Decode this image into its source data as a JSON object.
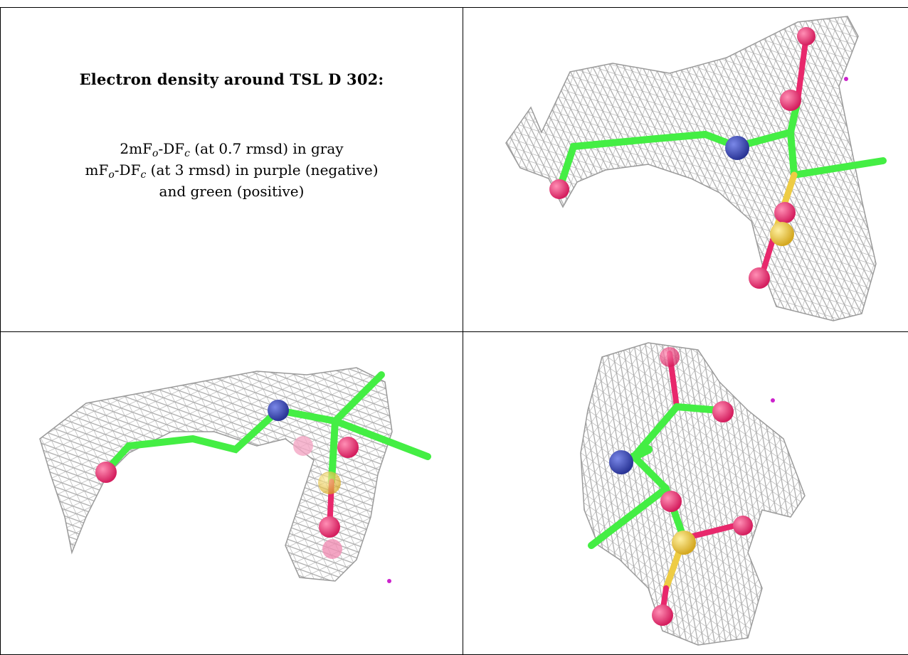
{
  "title": "Electron density around TSL D 302:",
  "legend": {
    "line1": {
      "prefix": "2mF",
      "sub_o": "o",
      "mid": "-DF",
      "sub_c": "c",
      "suffix": " (at 0.7 rmsd) in gray"
    },
    "line2": {
      "prefix": "mF",
      "sub_o": "o",
      "mid": "-DF",
      "sub_c": "c",
      "suffix": " (at 3 rmsd) in purple (negative)"
    },
    "line3": "and green (positive)"
  },
  "colors": {
    "mesh": "#a8a8a8",
    "carbon": "#44ee44",
    "nitrogen": "#3344bb",
    "oxygen": "#e8286c",
    "sulfur": "#eecc44",
    "negative_density": "#cc22cc"
  }
}
